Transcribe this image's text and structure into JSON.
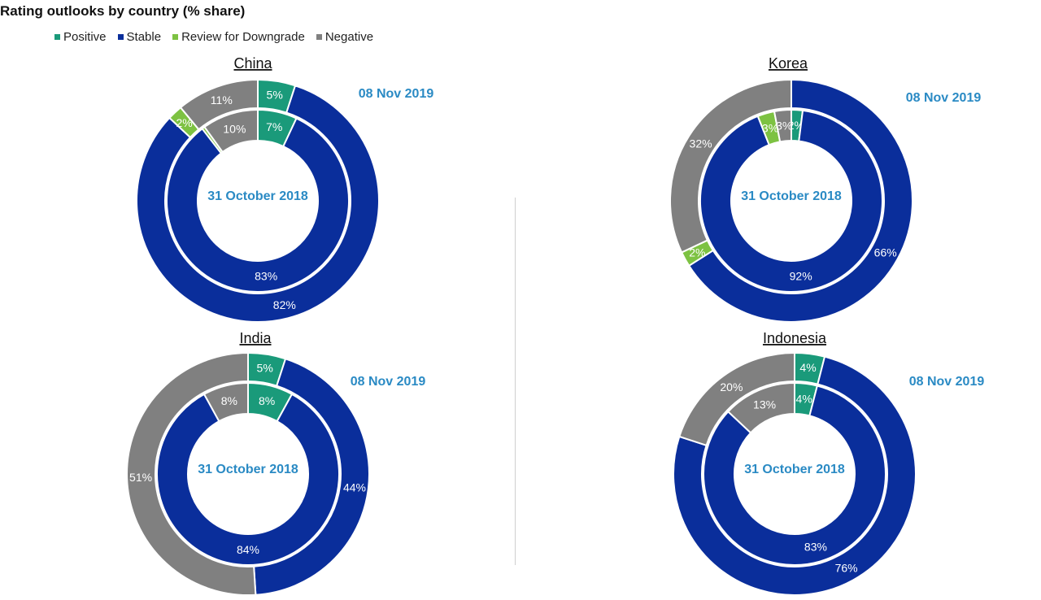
{
  "title": "Rating outlooks by country (% share)",
  "colors": {
    "Positive": "#1a9a7a",
    "Stable": "#0a2e9b",
    "Review for Downgrade": "#7dc242",
    "Negative": "#808080",
    "date_text": "#2a8ac4"
  },
  "chart_data": [
    {
      "type": "donut",
      "title": "China",
      "categories": [
        "Positive",
        "Stable",
        "Review for Downgrade",
        "Negative"
      ],
      "series": [
        {
          "name": "08 Nov 2019",
          "values": [
            5,
            82,
            2,
            11
          ],
          "labels": [
            "5%",
            "82%",
            "2%",
            "11%"
          ]
        },
        {
          "name": "31 October 2018",
          "values": [
            7,
            83,
            0.5,
            10
          ],
          "labels": [
            "7%",
            "83%",
            "",
            "10%"
          ]
        }
      ]
    },
    {
      "type": "donut",
      "title": "Korea",
      "categories": [
        "Positive",
        "Stable",
        "Review for Downgrade",
        "Negative"
      ],
      "series": [
        {
          "name": "08 Nov 2019",
          "values": [
            0,
            66,
            2,
            32
          ],
          "labels": [
            "",
            "66%",
            "2%",
            "32%"
          ]
        },
        {
          "name": "31 October 2018",
          "values": [
            2,
            92,
            3,
            3
          ],
          "labels": [
            "2%",
            "92%",
            "3%",
            "3%"
          ]
        }
      ]
    },
    {
      "type": "donut",
      "title": "India",
      "categories": [
        "Positive",
        "Stable",
        "Review for Downgrade",
        "Negative"
      ],
      "series": [
        {
          "name": "08 Nov 2019",
          "values": [
            5,
            44,
            0,
            51
          ],
          "labels": [
            "5%",
            "44%",
            "",
            "51%"
          ]
        },
        {
          "name": "31 October 2018",
          "values": [
            8,
            84,
            0,
            8
          ],
          "labels": [
            "8%",
            "84%",
            "",
            "8%"
          ]
        }
      ]
    },
    {
      "type": "donut",
      "title": "Indonesia",
      "categories": [
        "Positive",
        "Stable",
        "Review for Downgrade",
        "Negative"
      ],
      "series": [
        {
          "name": "08 Nov 2019",
          "values": [
            4,
            76,
            0,
            20
          ],
          "labels": [
            "4%",
            "76%",
            "",
            "20%"
          ]
        },
        {
          "name": "31 October 2018",
          "values": [
            4,
            83,
            0,
            13
          ],
          "labels": [
            "4%",
            "83%",
            "",
            "13%"
          ]
        }
      ]
    }
  ]
}
